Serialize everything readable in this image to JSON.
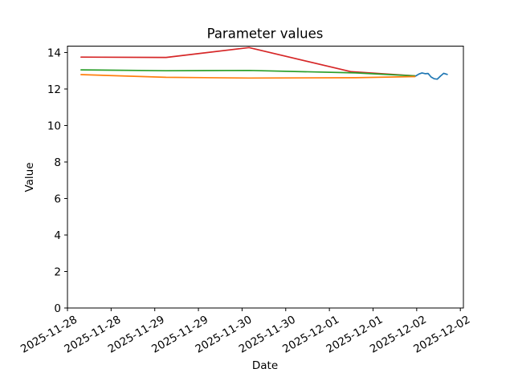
{
  "chart_data": {
    "type": "line",
    "title": "Parameter values",
    "xlabel": "Date",
    "ylabel": "Value",
    "background": "#ffffff",
    "axis_color": "#000000",
    "grid": false,
    "legend": false,
    "ylim": [
      0,
      14.35
    ],
    "xlim": [
      0,
      9.07
    ],
    "yticks": [
      0,
      2,
      4,
      6,
      8,
      10,
      12,
      14
    ],
    "xtick_positions": [
      0,
      1,
      2,
      3,
      4,
      5,
      6,
      7,
      8,
      9
    ],
    "xtick_labels": [
      "2025-11-28",
      "2025-11-28",
      "2025-11-29",
      "2025-11-29",
      "2025-11-30",
      "2025-11-30",
      "2025-12-01",
      "2025-12-01",
      "2025-12-02",
      "2025-12-02"
    ],
    "xtick_label_rotation_deg": 30,
    "series": [
      {
        "name": "red-line",
        "color": "#d62728",
        "x": [
          0.31,
          2.26,
          4.16,
          6.5,
          7.96
        ],
        "y": [
          13.75,
          13.73,
          14.27,
          12.95,
          12.72
        ]
      },
      {
        "name": "green-line",
        "color": "#2ca02c",
        "x": [
          0.31,
          2.26,
          4.16,
          6.6,
          7.96
        ],
        "y": [
          13.05,
          13.0,
          13.02,
          12.88,
          12.72
        ]
      },
      {
        "name": "orange-line",
        "color": "#ff7f0e",
        "x": [
          0.31,
          2.26,
          4.16,
          6.6,
          7.96
        ],
        "y": [
          12.79,
          12.64,
          12.6,
          12.62,
          12.68
        ]
      },
      {
        "name": "blue-line",
        "color": "#1f77b4",
        "x": [
          7.98,
          8.05,
          8.12,
          8.2,
          8.26,
          8.33,
          8.4,
          8.47,
          8.55,
          8.62,
          8.7
        ],
        "y": [
          12.72,
          12.82,
          12.88,
          12.84,
          12.85,
          12.66,
          12.56,
          12.54,
          12.72,
          12.86,
          12.8
        ]
      }
    ]
  }
}
